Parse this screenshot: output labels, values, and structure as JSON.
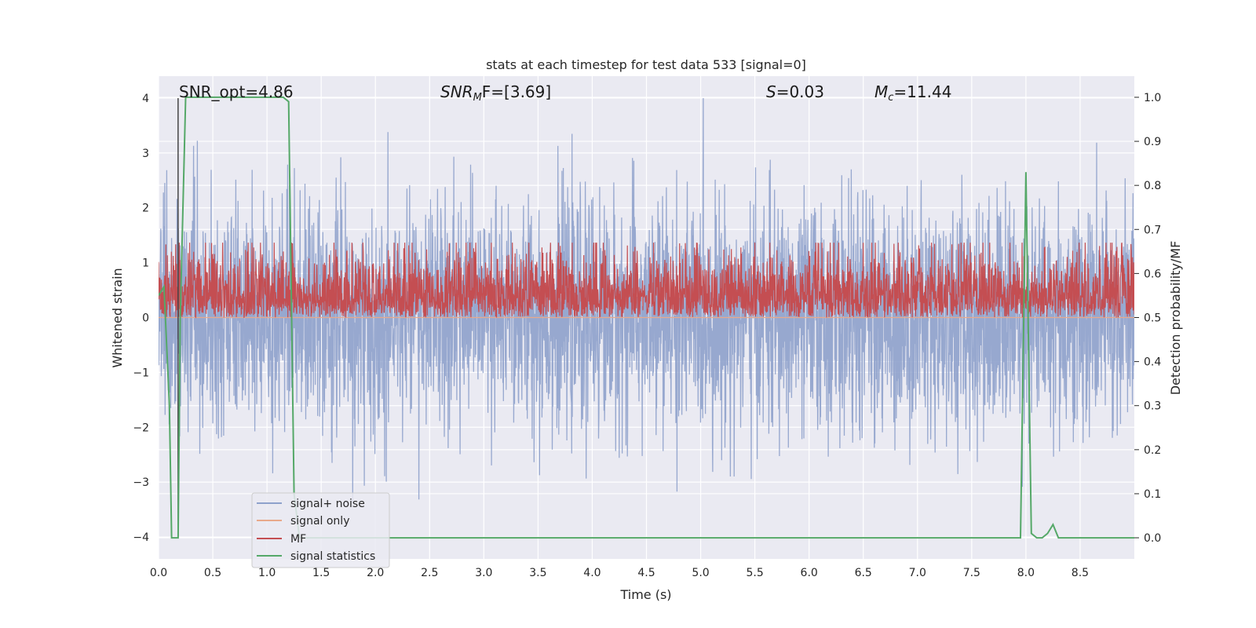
{
  "chart_data": {
    "type": "line",
    "title": "stats at each timestep for test data 533 [signal=0]",
    "xlabel": "Time (s)",
    "ylabel": "Whitened strain",
    "y2label": "Detection probability/MF",
    "xlim": [
      0.0,
      9.0
    ],
    "ylim": [
      -4.4,
      4.4
    ],
    "y2lim": [
      -0.048,
      1.048
    ],
    "xticks": [
      0.0,
      0.5,
      1.0,
      1.5,
      2.0,
      2.5,
      3.0,
      3.5,
      4.0,
      4.5,
      5.0,
      5.5,
      6.0,
      6.5,
      7.0,
      7.5,
      8.0,
      8.5
    ],
    "xtick_labels": [
      "0.0",
      "0.5",
      "1.0",
      "1.5",
      "2.0",
      "2.5",
      "3.0",
      "3.5",
      "4.0",
      "4.5",
      "5.0",
      "5.5",
      "6.0",
      "6.5",
      "7.0",
      "7.5",
      "8.0",
      "8.5"
    ],
    "yticks": [
      -4,
      -3,
      -2,
      -1,
      0,
      1,
      2,
      3,
      4
    ],
    "ytick_labels": [
      "−4",
      "−3",
      "−2",
      "−1",
      "0",
      "1",
      "2",
      "3",
      "4"
    ],
    "y2ticks": [
      0.0,
      0.1,
      0.2,
      0.3,
      0.4,
      0.5,
      0.6,
      0.7,
      0.8,
      0.9,
      1.0
    ],
    "y2tick_labels": [
      "0.0",
      "0.1",
      "0.2",
      "0.3",
      "0.4",
      "0.5",
      "0.6",
      "0.7",
      "0.8",
      "0.9",
      "1.0"
    ],
    "annotations": {
      "snr_opt": "SNR_opt=4.86",
      "snr_mf_sym": "SNR",
      "snr_mf_sub": "M",
      "snr_mf_rest": "F=[3.69]",
      "s_sym": "S",
      "s_rest": "=0.03",
      "mc_sym": "M",
      "mc_sub": "c",
      "mc_rest": "=11.44"
    },
    "legend": {
      "position": "lower-left",
      "entries": [
        "signal+ noise",
        "signal only",
        "MF",
        "signal statistics"
      ]
    },
    "series": [
      {
        "name": "signal+ noise",
        "axis": "left",
        "color": "#8ea1cb",
        "description": "whitened noise, roughly Gaussian, std ≈ 1, spans about -4 to 4 over 0–9 s",
        "x_range": [
          0.0,
          9.0
        ],
        "y_extremes": [
          -4.0,
          4.0
        ]
      },
      {
        "name": "signal only",
        "axis": "left",
        "color": "#e8a98b",
        "x": [
          0.0,
          9.0
        ],
        "y": [
          0.0,
          0.0
        ]
      },
      {
        "name": "MF",
        "axis": "right",
        "color": "#c44e52",
        "description": "matched-filter output fluctuating between about 0.5 and 0.67",
        "x_range": [
          0.0,
          9.0
        ],
        "y_range": [
          0.5,
          0.67
        ]
      },
      {
        "name": "signal statistics",
        "axis": "right",
        "color": "#55a868",
        "x": [
          0.0,
          0.05,
          0.1,
          0.12,
          0.18,
          0.2,
          0.25,
          0.3,
          1.1,
          1.15,
          1.2,
          1.25,
          1.3,
          7.85,
          7.95,
          8.0,
          8.05,
          8.1,
          8.15,
          8.2,
          8.25,
          8.3,
          8.4,
          9.0
        ],
        "y": [
          0.55,
          0.57,
          0.3,
          0.0,
          0.0,
          0.5,
          1.0,
          1.0,
          1.0,
          1.0,
          0.99,
          0.1,
          0.0,
          0.0,
          0.0,
          0.83,
          0.01,
          0.0,
          0.0,
          0.01,
          0.03,
          0.0,
          0.0,
          0.0
        ]
      },
      {
        "name": "marker line",
        "axis": "left",
        "color": "#444444",
        "x": [
          0.18,
          0.18
        ],
        "y": [
          -4.0,
          4.0
        ]
      }
    ]
  }
}
